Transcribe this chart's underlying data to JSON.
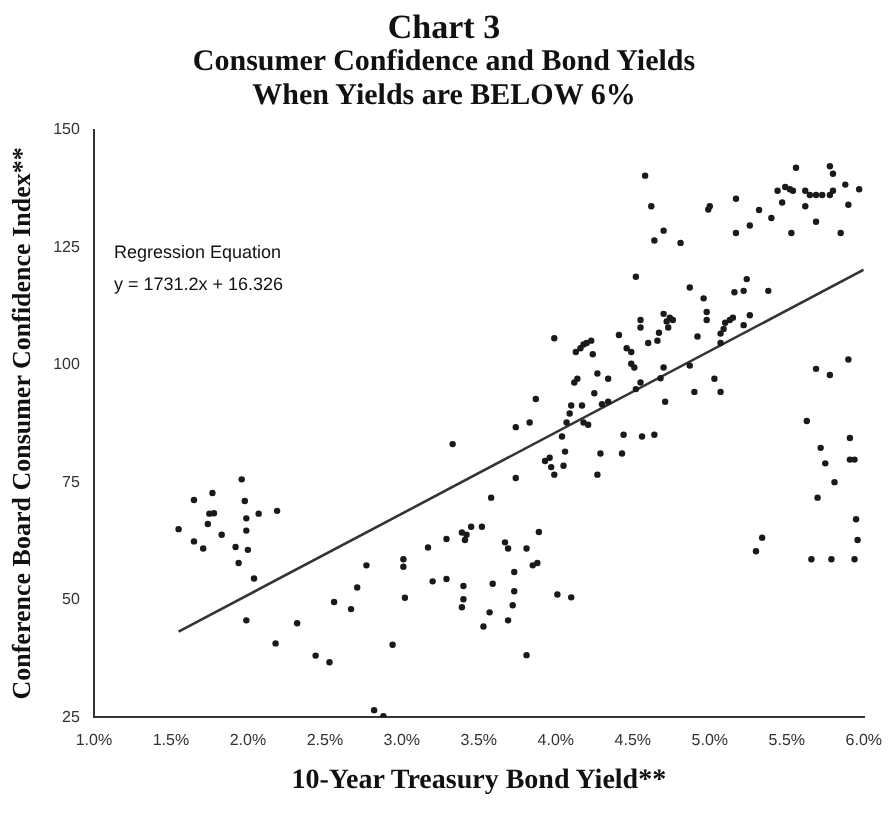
{
  "chart_data": {
    "type": "scatter",
    "title": "Chart 3",
    "subtitle": "Consumer Confidence and Bond Yields When Yields are BELOW 6%",
    "xlabel": "10-Year Treasury Bond Yield**",
    "ylabel": "Conference Board Consumer Confidence Index**",
    "annotations": [
      "Regression Equation",
      "y = 1731.2x + 16.326"
    ],
    "xlim": [
      1.0,
      6.0
    ],
    "xticks": [
      {
        "value": 1.0,
        "label": "1.0%"
      },
      {
        "value": 1.5,
        "label": "1.5%"
      },
      {
        "value": 2.0,
        "label": "2.0%"
      },
      {
        "value": 2.5,
        "label": "2.5%"
      },
      {
        "value": 3.0,
        "label": "3.0%"
      },
      {
        "value": 3.5,
        "label": "3.5%"
      },
      {
        "value": 4.0,
        "label": "4.0%"
      },
      {
        "value": 4.5,
        "label": "4.5%"
      },
      {
        "value": 5.0,
        "label": "5.0%"
      },
      {
        "value": 5.5,
        "label": "5.5%"
      },
      {
        "value": 6.0,
        "label": "6.0%"
      }
    ],
    "ylim": [
      25,
      150
    ],
    "yticks": [
      25,
      50,
      75,
      100,
      125,
      150
    ],
    "grid": false,
    "legend": false,
    "marker": "circle",
    "series": [
      {
        "color": "#1a1a1a",
        "x": [
          1.55,
          1.65,
          1.65,
          1.71,
          1.77,
          1.74,
          1.75,
          1.78,
          1.83,
          1.92,
          1.94,
          1.96,
          1.98,
          1.99,
          1.99,
          2.0,
          2.04,
          1.99,
          2.07,
          2.19,
          2.18,
          2.32,
          2.44,
          2.53,
          2.56,
          2.67,
          2.71,
          2.77,
          2.82,
          2.88,
          2.94,
          3.01,
          3.01,
          3.02,
          3.17,
          3.2,
          3.29,
          3.29,
          3.33,
          3.39,
          3.41,
          3.42,
          3.45,
          3.52,
          3.4,
          3.4,
          3.39,
          3.53,
          3.58,
          3.57,
          3.59,
          3.67,
          3.69,
          3.69,
          3.72,
          3.73,
          3.73,
          3.74,
          3.74,
          3.81,
          3.81,
          3.83,
          3.85,
          3.88,
          3.87,
          3.89,
          3.93,
          3.96,
          3.99,
          3.97,
          3.99,
          4.01,
          4.04,
          4.05,
          4.06,
          4.07,
          4.09,
          4.1,
          4.1,
          4.12,
          4.14,
          4.13,
          4.16,
          4.18,
          4.2,
          4.23,
          4.24,
          4.18,
          4.21,
          4.17,
          4.25,
          4.27,
          4.27,
          4.29,
          4.3,
          4.34,
          4.34,
          4.41,
          4.43,
          4.44,
          4.46,
          4.49,
          4.49,
          4.51,
          4.52,
          4.52,
          4.55,
          4.55,
          4.56,
          4.55,
          4.58,
          4.6,
          4.62,
          4.64,
          4.64,
          4.66,
          4.67,
          4.68,
          4.7,
          4.7,
          4.72,
          4.73,
          4.74,
          4.76,
          4.7,
          4.71,
          4.81,
          4.87,
          4.87,
          4.9,
          4.92,
          4.96,
          4.98,
          4.98,
          4.99,
          5.0,
          5.03,
          5.07,
          5.07,
          5.07,
          5.09,
          5.1,
          5.13,
          5.15,
          5.16,
          5.17,
          5.17,
          5.22,
          5.22,
          5.24,
          5.26,
          5.26,
          5.3,
          5.34,
          5.32,
          5.38,
          5.4,
          5.44,
          5.47,
          5.49,
          5.52,
          5.53,
          5.54,
          5.56,
          5.62,
          5.62,
          5.65,
          5.69,
          5.73,
          5.78,
          5.8,
          5.63,
          5.66,
          5.69,
          5.69,
          5.7,
          5.72,
          5.75,
          5.78,
          5.8,
          5.78,
          5.79,
          5.81,
          5.85,
          5.88,
          5.9,
          5.9,
          5.91,
          5.91,
          5.94,
          5.94,
          5.95,
          5.96,
          5.97
        ],
        "values": [
          65,
          71.2,
          62.4,
          60.9,
          72.7,
          66.1,
          68.3,
          68.4,
          63.8,
          61.2,
          57.8,
          75.6,
          71,
          64.7,
          67.3,
          60.6,
          54.5,
          45.6,
          68.3,
          68.9,
          40.7,
          45,
          38.1,
          36.7,
          49.5,
          48,
          52.6,
          57.3,
          26.5,
          25.2,
          40.4,
          58.6,
          57,
          50.4,
          61.1,
          53.9,
          62.9,
          54.4,
          83.1,
          64.3,
          62.7,
          63.8,
          65.5,
          65.5,
          52.9,
          50.1,
          48.4,
          44.3,
          71.7,
          47.3,
          53.4,
          62.2,
          60.9,
          45.6,
          48.8,
          51.8,
          55.9,
          75.9,
          86.7,
          60.9,
          38.2,
          87.7,
          57.3,
          57.8,
          92.7,
          64.4,
          79.5,
          80.2,
          76.6,
          78.2,
          105.6,
          51.1,
          84.7,
          78.5,
          81.5,
          87.7,
          89.6,
          91.3,
          50.5,
          96.2,
          97,
          102.7,
          103.5,
          104.3,
          104.6,
          105.1,
          102.2,
          87.7,
          87.2,
          91.3,
          93.9,
          98.1,
          76.6,
          81.1,
          91.6,
          92.1,
          97,
          106.3,
          81.1,
          85.1,
          103.5,
          102.7,
          100.2,
          99.4,
          94.8,
          118.7,
          109.5,
          107.9,
          84.7,
          96.2,
          140.2,
          104.6,
          133.7,
          126.4,
          85.1,
          105.1,
          106.8,
          97.1,
          99.4,
          110.8,
          109.2,
          107.9,
          110,
          109.5,
          128.5,
          92.1,
          125.9,
          99.8,
          116.4,
          94.2,
          106,
          114.1,
          109.5,
          111.2,
          133,
          133.7,
          97,
          94.2,
          106.6,
          104.6,
          107.6,
          108.9,
          109.5,
          110,
          115.4,
          128,
          135.3,
          115.7,
          108.4,
          118.2,
          110.5,
          129.6,
          60.3,
          63.2,
          132.9,
          115.7,
          131.2,
          137,
          134.5,
          137.8,
          137.3,
          128,
          137,
          141.9,
          137,
          133.7,
          136.1,
          136.1,
          136.1,
          136.1,
          137,
          88,
          58.6,
          99.1,
          130.4,
          71.7,
          82.3,
          79,
          142.2,
          140.6,
          97.8,
          58.6,
          75,
          128,
          138.3,
          134,
          101.1,
          84.4,
          79.8,
          79.8,
          58.6,
          67.1,
          62.7,
          137.3
        ]
      },
      {
        "type": "line",
        "color": "#333333",
        "marker": "none",
        "x": [
          1.55,
          6.0
        ],
        "values": [
          43.2,
          120.2
        ]
      }
    ]
  }
}
